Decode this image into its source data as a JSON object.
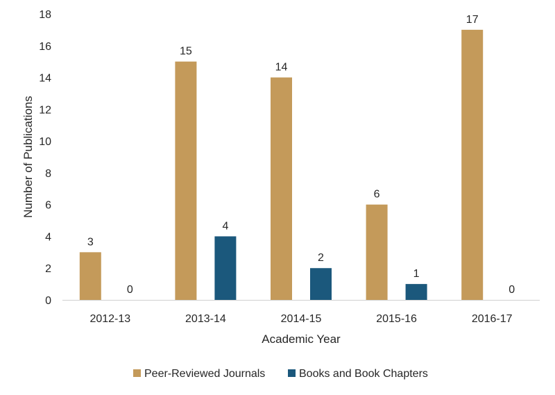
{
  "chart_data": {
    "type": "bar",
    "title": "",
    "xlabel": "Academic Year",
    "ylabel": "Number of Publications",
    "categories": [
      "2012-13",
      "2013-14",
      "2014-15",
      "2015-16",
      "2016-17"
    ],
    "series": [
      {
        "name": "Peer-Reviewed Journals",
        "color": "#C49A5A",
        "values": [
          3,
          15,
          14,
          6,
          17
        ]
      },
      {
        "name": "Books and Book Chapters",
        "color": "#1B587C",
        "values": [
          0,
          4,
          2,
          1,
          0
        ]
      }
    ],
    "ylim": [
      0,
      18
    ],
    "yticks": [
      0,
      2,
      4,
      6,
      8,
      10,
      12,
      14,
      16,
      18
    ],
    "grid": false,
    "legend": "bottom",
    "data_labels": true
  }
}
